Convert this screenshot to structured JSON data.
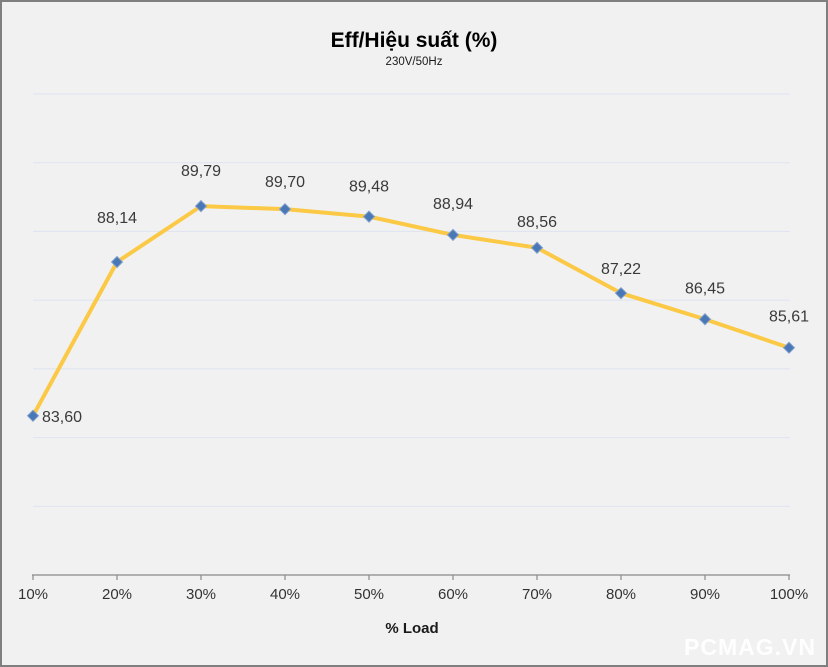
{
  "chart_data": {
    "type": "line",
    "title": "Eff/Hiệu suất (%)",
    "subtitle": "230V/50Hz",
    "xlabel": "% Load",
    "ylabel": "",
    "categories": [
      "10%",
      "20%",
      "30%",
      "40%",
      "50%",
      "60%",
      "70%",
      "80%",
      "90%",
      "100%"
    ],
    "series": [
      {
        "name": "Eff/Hiệu suất (%) @ 230V/50Hz",
        "values": [
          83.6,
          88.14,
          89.79,
          89.7,
          89.48,
          88.94,
          88.56,
          87.22,
          86.45,
          85.61
        ],
        "labels": [
          "83,60",
          "88,14",
          "89,79",
          "89,70",
          "89,48",
          "88,94",
          "88,56",
          "87,22",
          "86,45",
          "85,61"
        ],
        "label_positions": [
          "right",
          "above",
          "above",
          "above",
          "above",
          "above",
          "above",
          "above",
          "above",
          "above"
        ]
      }
    ],
    "ylim": [
      78.9,
      93.1
    ],
    "grid": true,
    "gridline_count": 7,
    "legend_position": "none",
    "marker_shape": "diamond",
    "decimal_separator": ",",
    "colors": {
      "line": "#FBC945",
      "marker": "#4A78B6",
      "marker_edge": "#7FA0CC",
      "gridline": "#DDE3F1",
      "axis": "#8A8A8A",
      "data_label_text": "#3A3A3A",
      "tick_label_text": "#333333",
      "title_text": "#000000",
      "background": "#F1F1F1",
      "frame_border": "#7F7F7F"
    }
  },
  "watermark": {
    "text": "PCMAG.VN",
    "color": "#FEFEFE"
  }
}
